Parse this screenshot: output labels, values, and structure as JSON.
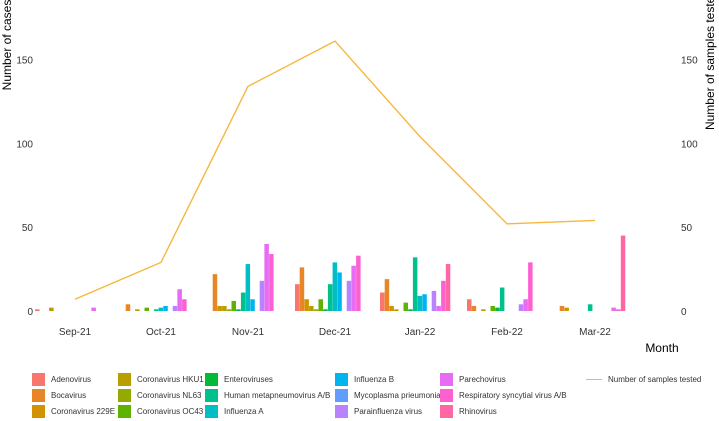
{
  "chart_data": {
    "type": "bar",
    "title": "",
    "xlabel": "Month",
    "ylabel": "Number of cases",
    "y2label": "Number of samples tested",
    "ylim": [
      0,
      170
    ],
    "y_ticks": [
      0,
      50,
      100,
      150
    ],
    "y2_ticks": [
      0,
      50,
      100,
      150
    ],
    "months": [
      "Sep-21",
      "Oct-21",
      "Nov-21",
      "Dec-21",
      "Jan-22",
      "Feb-22",
      "Mar-22"
    ],
    "series": [
      {
        "name": "Adenovirus",
        "color": "#F8766D",
        "values": [
          1,
          0,
          0,
          16,
          11,
          7,
          0
        ]
      },
      {
        "name": "Bocavirus",
        "color": "#E88526",
        "values": [
          0,
          4,
          22,
          26,
          19,
          3,
          3
        ]
      },
      {
        "name": "Coronavirus 229E",
        "color": "#D39200",
        "values": [
          0,
          0,
          3,
          7,
          3,
          0,
          2
        ]
      },
      {
        "name": "Coronavirus HKU1",
        "color": "#B79F00",
        "values": [
          2,
          1,
          3,
          3,
          1,
          1,
          0
        ]
      },
      {
        "name": "Coronavirus NL63",
        "color": "#93AA00",
        "values": [
          0,
          0,
          1,
          1,
          0,
          0,
          0
        ]
      },
      {
        "name": "Coronavirus OC43",
        "color": "#5EB300",
        "values": [
          0,
          2,
          6,
          7,
          5,
          3,
          0
        ]
      },
      {
        "name": "Enteroviruses",
        "color": "#00BA38",
        "values": [
          0,
          0,
          1,
          1,
          1,
          2,
          0
        ]
      },
      {
        "name": "Human metapneumovirus A/B",
        "color": "#00C08B",
        "values": [
          0,
          1,
          11,
          16,
          32,
          14,
          4
        ]
      },
      {
        "name": "Influenza A",
        "color": "#00BFC4",
        "values": [
          0,
          2,
          28,
          29,
          9,
          0,
          0
        ]
      },
      {
        "name": "Influenza B",
        "color": "#00B4F0",
        "values": [
          0,
          3,
          7,
          23,
          10,
          0,
          0
        ]
      },
      {
        "name": "Mycoplasma prieumoniae",
        "color": "#619CFF",
        "values": [
          0,
          0,
          0,
          0,
          0,
          0,
          0
        ]
      },
      {
        "name": "Parainfluenza virus",
        "color": "#B983FF",
        "values": [
          0,
          3,
          18,
          18,
          12,
          4,
          0
        ]
      },
      {
        "name": "Parechovirus",
        "color": "#E76BF3",
        "values": [
          2,
          13,
          40,
          27,
          3,
          7,
          2
        ]
      },
      {
        "name": "Respiratory syncytial virus A/B",
        "color": "#FD61D1",
        "values": [
          0,
          7,
          34,
          33,
          18,
          29,
          1
        ]
      },
      {
        "name": "Rhinovirus",
        "color": "#FF67A4",
        "values": [
          0,
          0,
          0,
          0,
          28,
          0,
          45
        ]
      }
    ],
    "line_series": {
      "name": "Number of samples tested",
      "color": "#F5B83D",
      "x": [
        "Sep-21",
        "Oct-21",
        "Nov-21",
        "Dec-21",
        "Jan-22",
        "Feb-22",
        "Mar-22"
      ],
      "values": [
        7,
        29,
        134,
        161,
        104,
        52,
        54
      ]
    },
    "legend": {
      "position": "bottom",
      "items": [
        "Adenovirus",
        "Coronavirus HKU1",
        "Enteroviruses",
        "Influenza B",
        "Parechovirus",
        "Number of samples tested",
        "Bocavirus",
        "Coronavirus NL63",
        "Human metapneumovirus A/B",
        "Mycoplasma prieumoniae",
        "Respiratory syncytial virus A/B",
        "Coronavirus 229E",
        "Coronavirus OC43",
        "Influenza A",
        "Parainfluenza virus",
        "Rhinovirus"
      ]
    }
  }
}
